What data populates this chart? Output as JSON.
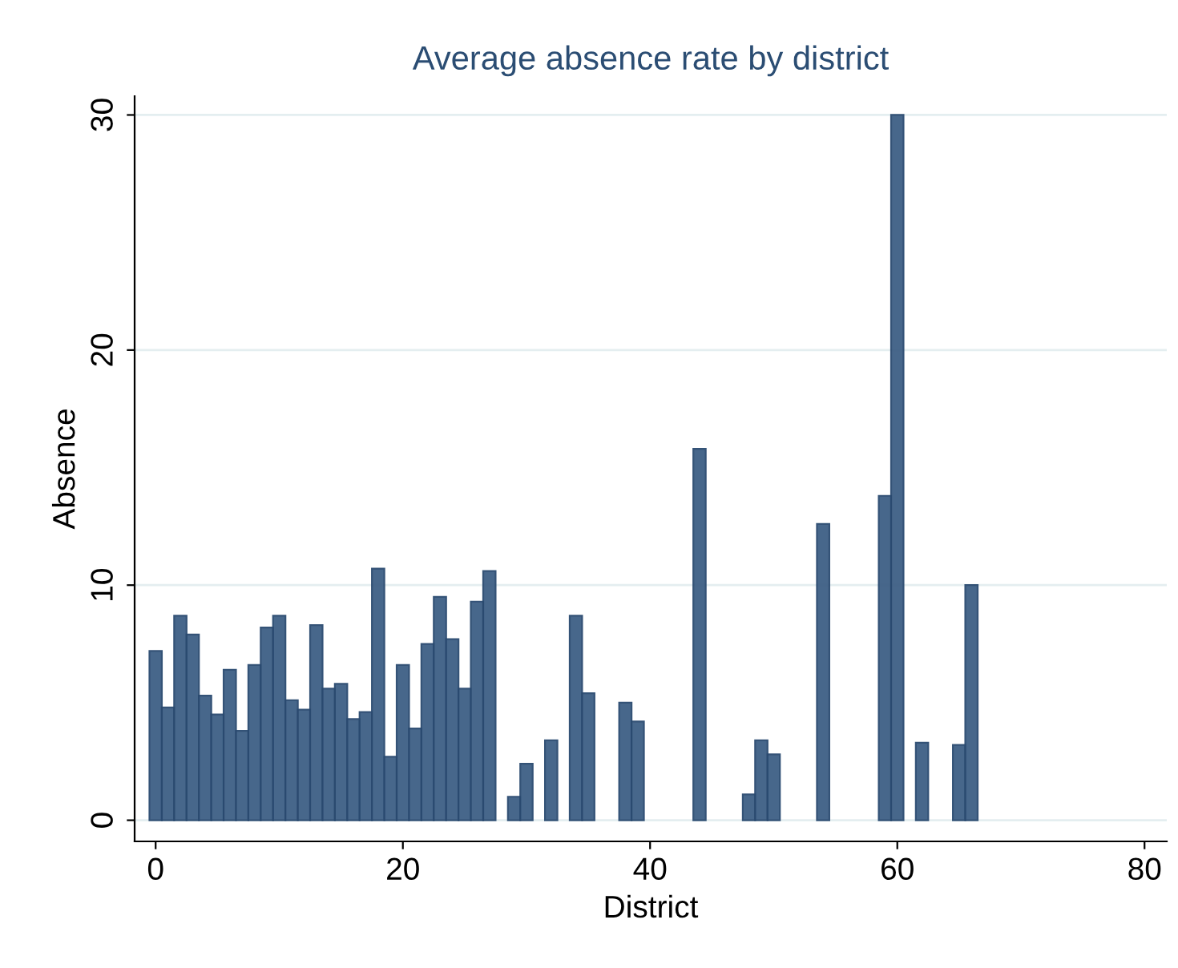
{
  "chart_data": {
    "type": "bar",
    "title": "Average absence rate by district",
    "xlabel": "District",
    "ylabel": "Absence",
    "x": [
      0,
      1,
      2,
      3,
      4,
      5,
      6,
      7,
      8,
      9,
      10,
      11,
      12,
      13,
      14,
      15,
      16,
      17,
      18,
      19,
      20,
      21,
      22,
      23,
      24,
      25,
      26,
      27,
      29,
      30,
      32,
      34,
      35,
      38,
      39,
      44,
      48,
      49,
      50,
      54,
      59,
      60,
      62,
      65,
      66
    ],
    "values": [
      7.2,
      4.8,
      8.7,
      7.9,
      5.3,
      4.5,
      6.4,
      3.8,
      6.6,
      8.2,
      8.7,
      5.1,
      4.7,
      8.3,
      5.6,
      5.8,
      4.3,
      4.6,
      10.7,
      2.7,
      6.6,
      3.9,
      7.5,
      9.5,
      7.7,
      5.6,
      9.3,
      10.6,
      1.0,
      2.4,
      3.4,
      8.7,
      5.4,
      5.0,
      4.2,
      15.8,
      1.1,
      3.4,
      2.8,
      12.6,
      13.8,
      30,
      3.3,
      3.2,
      10.0
    ],
    "color": "#3e5f85",
    "xlim": [
      -1.7,
      81.8
    ],
    "ylim": [
      -0.9,
      30.8
    ],
    "xticks": [
      0,
      20,
      40,
      60,
      80
    ],
    "yticks": [
      0,
      10,
      20,
      30
    ],
    "grid": "y",
    "legend": false
  }
}
